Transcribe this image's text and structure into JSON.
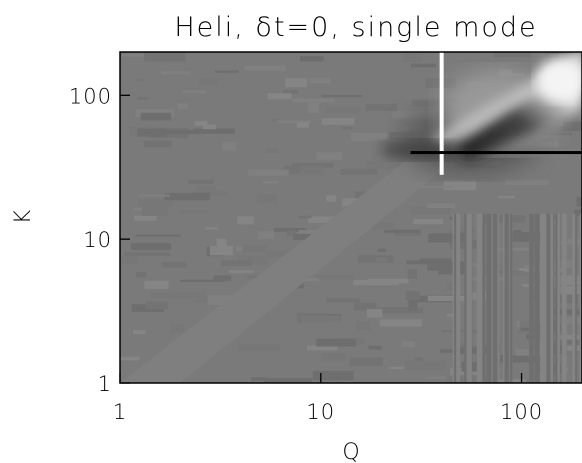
{
  "chart_data": {
    "type": "heatmap",
    "title": "Heli, δt=0, single mode",
    "xlabel": "Q",
    "ylabel": "K",
    "x_scale": "log",
    "y_scale": "log",
    "xlim": [
      1,
      200
    ],
    "ylim": [
      1,
      200
    ],
    "x_ticks": [
      {
        "value": 1,
        "label": "1"
      },
      {
        "value": 10,
        "label": "10"
      },
      {
        "value": 100,
        "label": "100"
      }
    ],
    "y_ticks": [
      {
        "value": 1,
        "label": "1"
      },
      {
        "value": 10,
        "label": "10"
      },
      {
        "value": 100,
        "label": "100"
      }
    ],
    "colormap": "grayscale",
    "background_color": "#7a7a7a",
    "features": {
      "vertical_line_Q": 40,
      "horizontal_line_K": 40,
      "vertical_line_color": "#ffffff",
      "horizontal_line_color": "#000000"
    }
  }
}
